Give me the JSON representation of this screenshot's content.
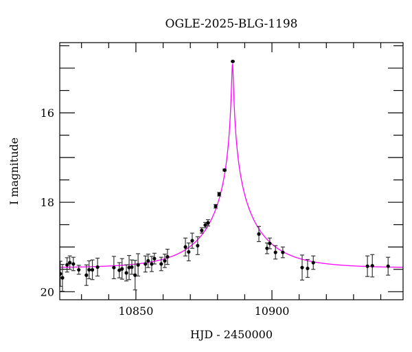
{
  "chart_data": {
    "type": "scatter",
    "title": "OGLE-2025-BLG-1198",
    "xlabel": "HJD - 2450000",
    "ylabel": "I magnitude",
    "xlim": [
      10822,
      10948.2
    ],
    "ylim": [
      20.18,
      14.43
    ],
    "y_inverted": true,
    "grid": false,
    "x_ticks": [
      10850,
      10900
    ],
    "y_ticks": [
      16,
      18,
      20
    ],
    "x_minor_step": 10,
    "y_minor_step": 0.5,
    "colors": {
      "points": "#000000",
      "errorbars": "#333333",
      "model": "#ff00ff"
    },
    "points": [
      {
        "x": 10822.2,
        "y": 19.6,
        "err": 0.28
      },
      {
        "x": 10823.0,
        "y": 19.69,
        "err": 0.3
      },
      {
        "x": 10824.7,
        "y": 19.4,
        "err": 0.16
      },
      {
        "x": 10825.7,
        "y": 19.35,
        "err": 0.15
      },
      {
        "x": 10827.0,
        "y": 19.38,
        "err": 0.15
      },
      {
        "x": 10829.0,
        "y": 19.51,
        "err": 0.1
      },
      {
        "x": 10831.8,
        "y": 19.63,
        "err": 0.23
      },
      {
        "x": 10832.8,
        "y": 19.51,
        "err": 0.2
      },
      {
        "x": 10834.0,
        "y": 19.51,
        "err": 0.22
      },
      {
        "x": 10835.9,
        "y": 19.45,
        "err": 0.2
      },
      {
        "x": 10841.9,
        "y": 19.46,
        "err": 0.25
      },
      {
        "x": 10843.9,
        "y": 19.52,
        "err": 0.17
      },
      {
        "x": 10844.9,
        "y": 19.49,
        "err": 0.23
      },
      {
        "x": 10846.5,
        "y": 19.58,
        "err": 0.18
      },
      {
        "x": 10847.5,
        "y": 19.46,
        "err": 0.27
      },
      {
        "x": 10848.5,
        "y": 19.45,
        "err": 0.16
      },
      {
        "x": 10849.7,
        "y": 19.63,
        "err": 0.33
      },
      {
        "x": 10850.8,
        "y": 19.4,
        "err": 0.25
      },
      {
        "x": 10853.5,
        "y": 19.38,
        "err": 0.18
      },
      {
        "x": 10854.5,
        "y": 19.31,
        "err": 0.15
      },
      {
        "x": 10855.8,
        "y": 19.38,
        "err": 0.17
      },
      {
        "x": 10856.8,
        "y": 19.26,
        "err": 0.12
      },
      {
        "x": 10859.3,
        "y": 19.38,
        "err": 0.15
      },
      {
        "x": 10860.6,
        "y": 19.31,
        "err": 0.15
      },
      {
        "x": 10861.6,
        "y": 19.22,
        "err": 0.17
      },
      {
        "x": 10868.2,
        "y": 19.0,
        "err": 0.2
      },
      {
        "x": 10869.4,
        "y": 19.11,
        "err": 0.2
      },
      {
        "x": 10870.7,
        "y": 18.86,
        "err": 0.17
      },
      {
        "x": 10872.7,
        "y": 18.97,
        "err": 0.2
      },
      {
        "x": 10874.2,
        "y": 18.63,
        "err": 0.06
      },
      {
        "x": 10875.5,
        "y": 18.51,
        "err": 0.06
      },
      {
        "x": 10876.5,
        "y": 18.46,
        "err": 0.07
      },
      {
        "x": 10879.3,
        "y": 18.09,
        "err": 0.04
      },
      {
        "x": 10880.6,
        "y": 17.82,
        "err": 0.04
      },
      {
        "x": 10882.6,
        "y": 17.28,
        "err": 0.02
      },
      {
        "x": 10885.6,
        "y": 14.85,
        "err": 0.01
      },
      {
        "x": 10895.2,
        "y": 18.71,
        "err": 0.17
      },
      {
        "x": 10898.2,
        "y": 19.03,
        "err": 0.12
      },
      {
        "x": 10899.2,
        "y": 18.92,
        "err": 0.12
      },
      {
        "x": 10901.3,
        "y": 19.12,
        "err": 0.15
      },
      {
        "x": 10904.0,
        "y": 19.12,
        "err": 0.12
      },
      {
        "x": 10911.1,
        "y": 19.46,
        "err": 0.28
      },
      {
        "x": 10913.1,
        "y": 19.48,
        "err": 0.2
      },
      {
        "x": 10915.2,
        "y": 19.35,
        "err": 0.15
      },
      {
        "x": 10935.1,
        "y": 19.43,
        "err": 0.23
      },
      {
        "x": 10936.9,
        "y": 19.42,
        "err": 0.25
      },
      {
        "x": 10942.7,
        "y": 19.43,
        "err": 0.2
      }
    ],
    "model": {
      "type": "point-lens",
      "t0": 10885.5,
      "tE": 20,
      "u0": 0.015,
      "I_base": 19.47
    }
  }
}
